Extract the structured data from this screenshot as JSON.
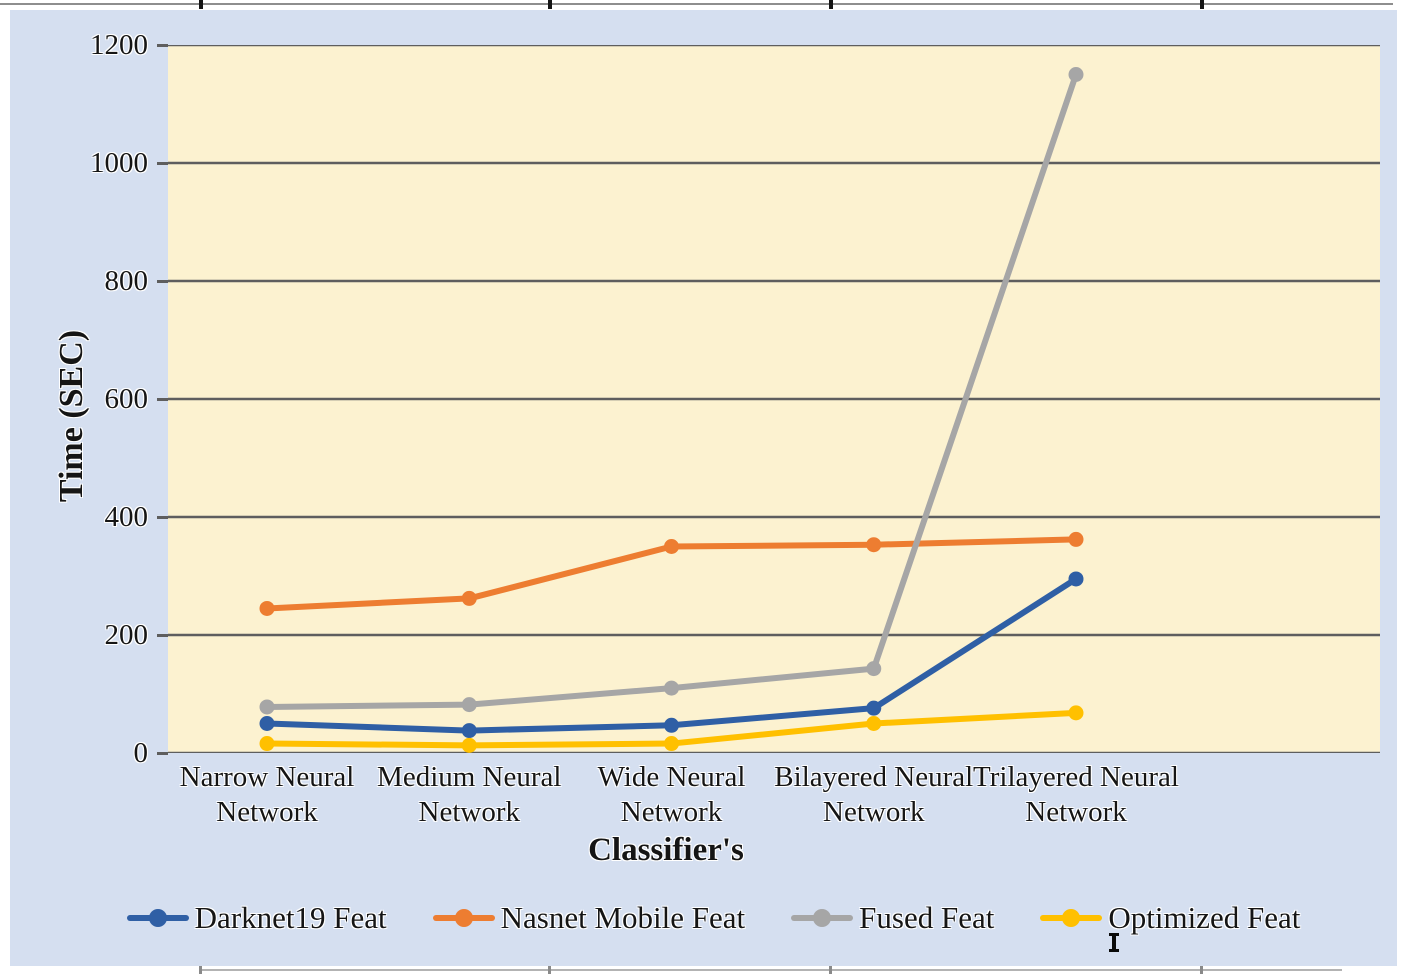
{
  "figure": {
    "background_color": "#ffffff",
    "panel_color": "#d5dff0",
    "plot_color": "#fcf2d0",
    "gridline_color": "#5e5e5e",
    "text_color": "#151515"
  },
  "chart_data": {
    "type": "line",
    "title": "",
    "xlabel": "Classifier's",
    "ylabel": "Time (SEC)",
    "categories": [
      "Narrow Neural Network",
      "Medium Neural Network",
      "Wide Neural Network",
      "Bilayered Neural Network",
      "Trilayered Neural Network"
    ],
    "series": [
      {
        "name": "Darknet19 Feat",
        "color": "#2f5fa5",
        "values": [
          50,
          38,
          47,
          76,
          295
        ]
      },
      {
        "name": "Nasnet Mobile Feat",
        "color": "#ed7d31",
        "values": [
          245,
          262,
          350,
          353,
          362
        ]
      },
      {
        "name": "Fused Feat",
        "color": "#a6a6a6",
        "values": [
          78,
          82,
          110,
          143,
          1150
        ]
      },
      {
        "name": "Optimized Feat",
        "color": "#ffc000",
        "values": [
          16,
          13,
          16,
          50,
          68
        ]
      }
    ],
    "ylim": [
      0,
      1200
    ],
    "yticks": [
      0,
      200,
      400,
      600,
      800,
      1000,
      1200
    ],
    "grid": "horizontal",
    "legend_position": "bottom",
    "marker": "circle"
  }
}
